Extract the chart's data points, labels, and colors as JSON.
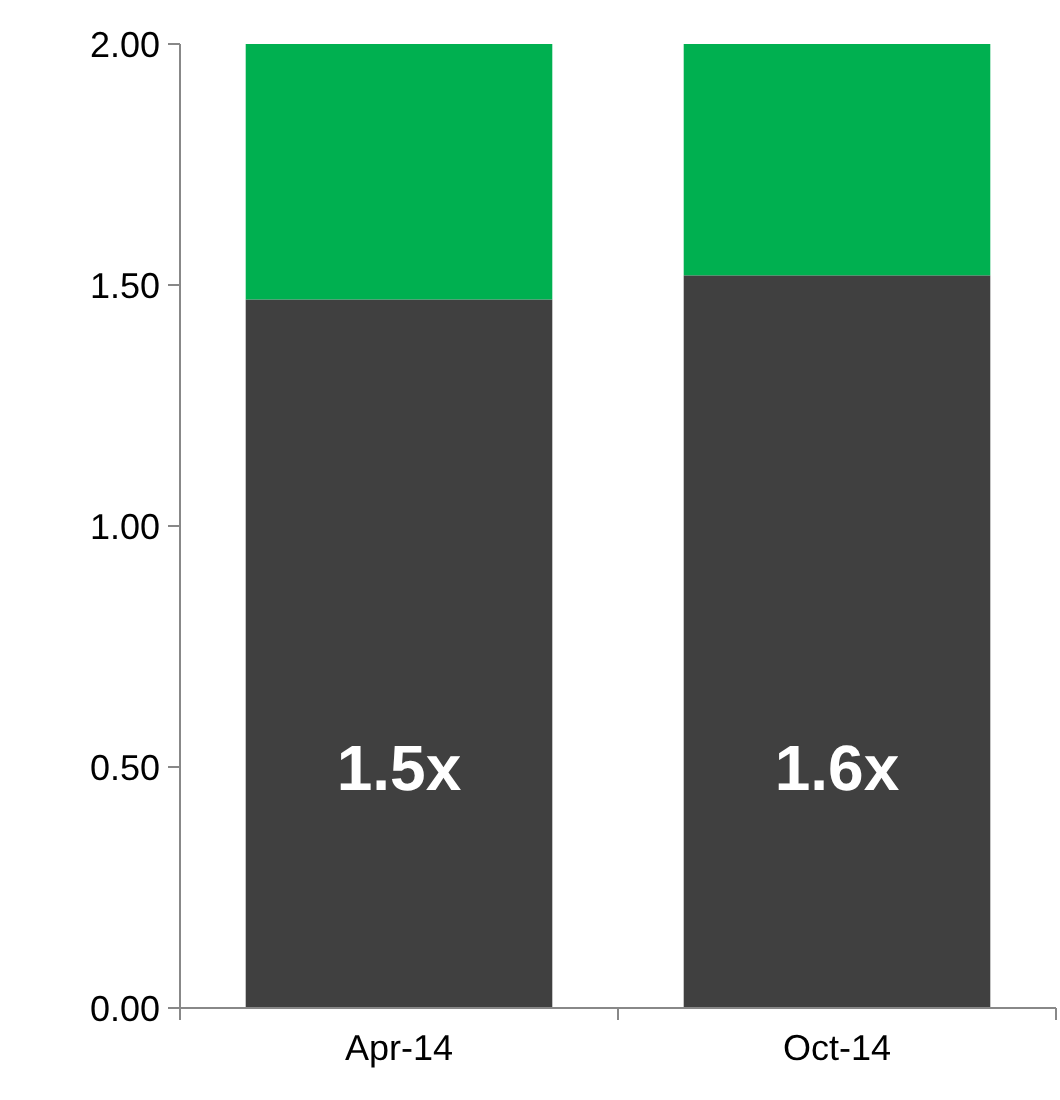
{
  "chart_data": {
    "type": "bar",
    "stacked": true,
    "categories": [
      "Apr-14",
      "Oct-14"
    ],
    "series": [
      {
        "color": "#404040",
        "values": [
          1.47,
          1.52
        ]
      },
      {
        "color": "#00b050",
        "values": [
          0.53,
          0.48
        ]
      }
    ],
    "ylim": [
      0,
      2
    ],
    "yticks": [
      {
        "value": 0,
        "label": "0.00"
      },
      {
        "value": 0.5,
        "label": "0.50"
      },
      {
        "value": 1,
        "label": "1.00"
      },
      {
        "value": 1.5,
        "label": "1.50"
      },
      {
        "value": 2,
        "label": "2.00"
      }
    ],
    "grid": false,
    "annotations": [
      "1.5x",
      "1.6x"
    ]
  }
}
